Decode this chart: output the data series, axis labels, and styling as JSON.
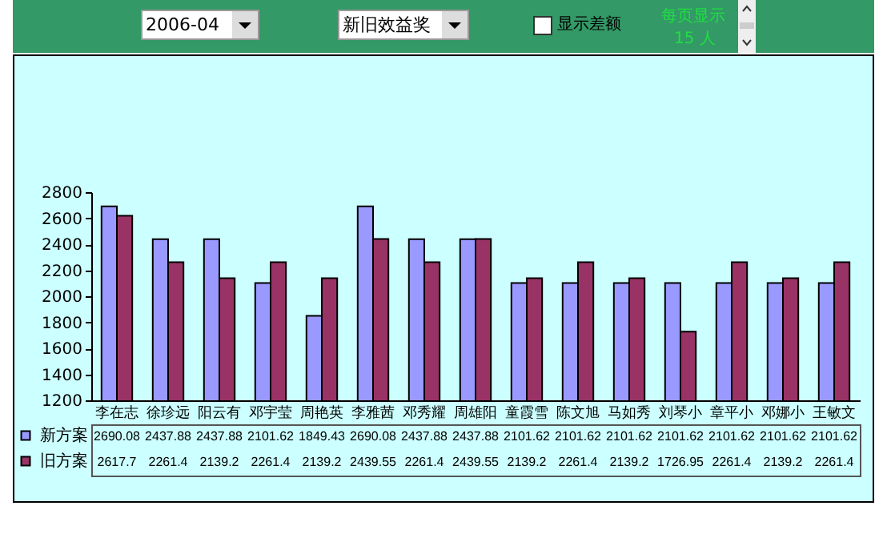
{
  "chart_data": {
    "type": "bar",
    "categories": [
      "李在志",
      "徐珍远",
      "阳云有",
      "邓宇莹",
      "周艳英",
      "李雅茜",
      "邓秀耀",
      "周雄阳",
      "童霞雪",
      "陈文旭",
      "马如秀",
      "刘琴小",
      "章平小",
      "邓娜小",
      "王敏文"
    ],
    "series": [
      {
        "name": "新方案",
        "color": "#9999ff",
        "values": [
          2690.08,
          2437.88,
          2437.88,
          2101.62,
          1849.43,
          2690.08,
          2437.88,
          2437.88,
          2101.62,
          2101.62,
          2101.62,
          2101.62,
          2101.62,
          2101.62,
          2101.62
        ],
        "value_labels": [
          "2690.08",
          "2437.88",
          "2437.88",
          "2101.62",
          "1849.43",
          "2690.08",
          "2437.88",
          "2437.88",
          "2101.62",
          "2101.62",
          "2101.62",
          "2101.62",
          "2101.62",
          "2101.62",
          "2101.62"
        ]
      },
      {
        "name": "旧方案",
        "color": "#993366",
        "values": [
          2617.7,
          2261.4,
          2139.2,
          2261.4,
          2139.2,
          2439.55,
          2261.4,
          2439.55,
          2139.2,
          2261.4,
          2139.2,
          1726.95,
          2261.4,
          2139.2,
          2261.4
        ],
        "value_labels": [
          "2617.7",
          "2261.4",
          "2139.2",
          "2261.4",
          "2139.2",
          "2439.55",
          "2261.4",
          "2439.55",
          "2139.2",
          "2261.4",
          "2139.2",
          "1726.95",
          "2261.4",
          "2139.2",
          "2261.4"
        ]
      }
    ],
    "ylim": [
      1200,
      2800
    ],
    "yticks": [
      1200,
      1400,
      1600,
      1800,
      2000,
      2200,
      2400,
      2600,
      2800
    ],
    "grid": false,
    "legend": "bottom left",
    "annotations": [
      "2006-04",
      "新旧效益奖",
      "显示差额",
      "每页显示",
      "15 人"
    ]
  }
}
